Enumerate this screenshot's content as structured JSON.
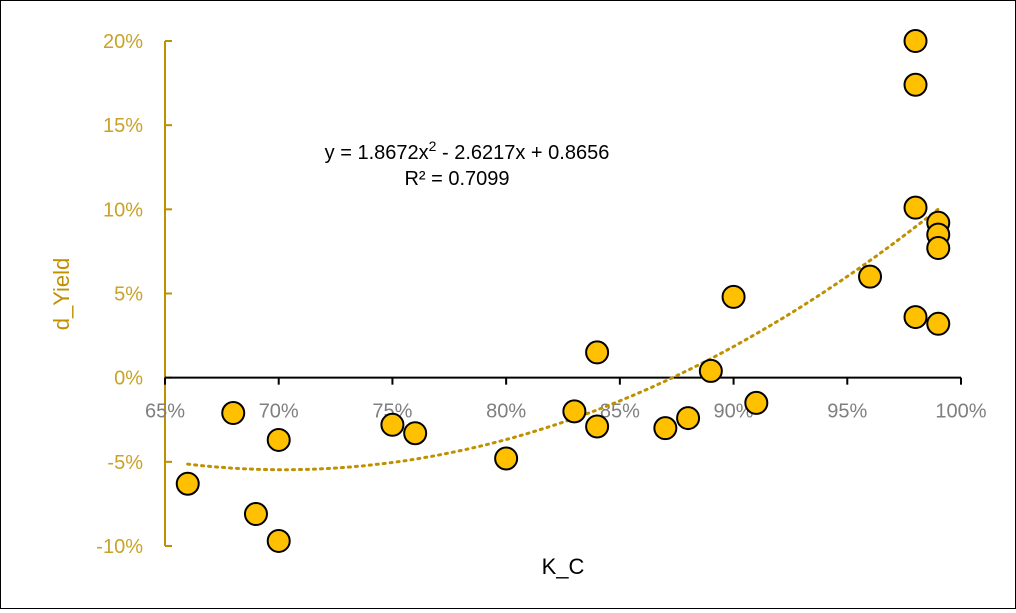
{
  "chart_data": {
    "type": "scatter",
    "xlabel": "K_C",
    "ylabel": "d_Yield",
    "xlim": [
      0.65,
      1.0
    ],
    "ylim": [
      -0.1,
      0.2
    ],
    "x_ticks": [
      0.65,
      0.7,
      0.75,
      0.8,
      0.85,
      0.9,
      0.95,
      1.0
    ],
    "x_tick_labels": [
      "65%",
      "70%",
      "75%",
      "80%",
      "85%",
      "90%",
      "95%",
      "100%"
    ],
    "y_ticks": [
      -0.1,
      -0.05,
      0.0,
      0.05,
      0.1,
      0.15,
      0.2
    ],
    "y_tick_labels": [
      "-10%",
      "-5%",
      "0%",
      "5%",
      "10%",
      "15%",
      "20%"
    ],
    "grid": false,
    "legend": "none",
    "trendline": {
      "type": "polynomial",
      "order": 2,
      "coefficients": [
        1.8672,
        -2.6217,
        0.8656
      ],
      "x_range": [
        0.66,
        0.99
      ],
      "equation_line1": "y = 1.8672x",
      "equation_superscript": "2",
      "equation_line1_rest": " - 2.6217x + 0.8656",
      "r_squared_label": "R² = 0.7099"
    },
    "series": [
      {
        "points": [
          {
            "x": 0.66,
            "y": -0.063
          },
          {
            "x": 0.68,
            "y": -0.021
          },
          {
            "x": 0.69,
            "y": -0.081
          },
          {
            "x": 0.7,
            "y": -0.037
          },
          {
            "x": 0.7,
            "y": -0.097
          },
          {
            "x": 0.75,
            "y": -0.028
          },
          {
            "x": 0.76,
            "y": -0.033
          },
          {
            "x": 0.8,
            "y": -0.048
          },
          {
            "x": 0.83,
            "y": -0.02
          },
          {
            "x": 0.84,
            "y": -0.029
          },
          {
            "x": 0.84,
            "y": 0.015
          },
          {
            "x": 0.87,
            "y": -0.03
          },
          {
            "x": 0.88,
            "y": -0.024
          },
          {
            "x": 0.89,
            "y": 0.004
          },
          {
            "x": 0.9,
            "y": 0.048
          },
          {
            "x": 0.91,
            "y": -0.015
          },
          {
            "x": 0.96,
            "y": 0.06
          },
          {
            "x": 0.98,
            "y": 0.2
          },
          {
            "x": 0.98,
            "y": 0.174
          },
          {
            "x": 0.98,
            "y": 0.101
          },
          {
            "x": 0.98,
            "y": 0.036
          },
          {
            "x": 0.99,
            "y": 0.092
          },
          {
            "x": 0.99,
            "y": 0.085
          },
          {
            "x": 0.99,
            "y": 0.077
          },
          {
            "x": 0.99,
            "y": 0.032
          }
        ]
      }
    ],
    "colors": {
      "axis_gold": "#BF9000",
      "tick_label_gold": "#C9A227",
      "x_tick_label": "#7F7F7F",
      "x_axis": "#000000",
      "marker_fill": "#FFC000",
      "marker_stroke": "#000000",
      "trendline": "#BF9000"
    }
  }
}
